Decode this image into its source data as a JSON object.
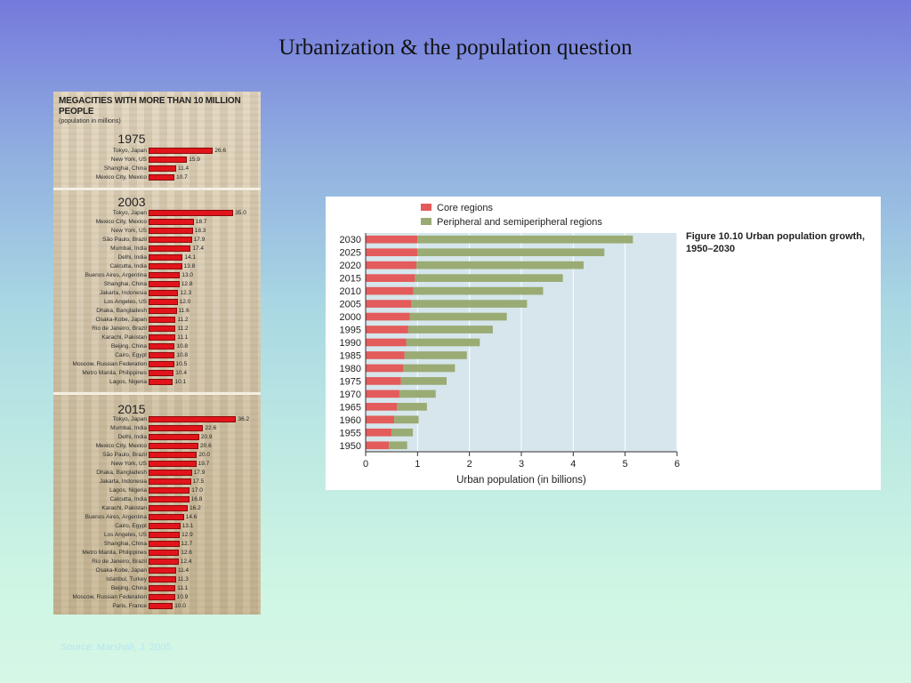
{
  "slide": {
    "title": "Urbanization & the population question",
    "source": "Source: Marshall, J. 2005"
  },
  "megacities": {
    "heading": "MEGACITIES WITH MORE THAN 10 MILLION PEOPLE",
    "subheading": "(population in millions)",
    "bar_color": "#e2141b"
  },
  "urban_figure": {
    "caption": "Figure 10.10   Urban population growth, 1950–2030",
    "colors": {
      "core": "#e35b5b",
      "peripheral": "#9aab74",
      "plot_bg": "#d6e6ec"
    }
  },
  "chart_data": [
    {
      "type": "bar",
      "orientation": "horizontal",
      "title": "1975",
      "categories": [
        "Tokyo, Japan",
        "New York, US",
        "Shanghai, China",
        "Mexico City, Mexico"
      ],
      "values": [
        26.6,
        15.9,
        11.4,
        10.7
      ],
      "value_labels": [
        "26.6",
        "15.9",
        "11.4",
        "10.7"
      ]
    },
    {
      "type": "bar",
      "orientation": "horizontal",
      "title": "2003",
      "categories": [
        "Tokyo, Japan",
        "Mexico City, Mexico",
        "New York, US",
        "São Paulo, Brazil",
        "Mumbai, India",
        "Delhi, India",
        "Calcutta, India",
        "Buenos Aires, Argentina",
        "Shanghai, China",
        "Jakarta, Indonesia",
        "Los Angeles, US",
        "Dhaka, Bangladesh",
        "Osaka-Kobe, Japan",
        "Rio de Janeiro, Brazil",
        "Karachi, Pakistan",
        "Beijing, China",
        "Cairo, Egypt",
        "Moscow, Russian Federation",
        "Metro Manila, Philippines",
        "Lagos, Nigeria"
      ],
      "values": [
        35.0,
        18.7,
        18.3,
        17.9,
        17.4,
        14.1,
        13.8,
        13.0,
        12.8,
        12.3,
        12.0,
        11.6,
        11.2,
        11.2,
        11.1,
        10.8,
        10.8,
        10.5,
        10.4,
        10.1
      ],
      "value_labels": [
        "35.0",
        "18.7",
        "18.3",
        "17.9",
        "17.4",
        "14.1",
        "13.8",
        "13.0",
        "12.8",
        "12.3",
        "12.0",
        "11.6",
        "11.2",
        "11.2",
        "11.1",
        "10.8",
        "10.8",
        "10.5",
        "10.4",
        "10.1"
      ]
    },
    {
      "type": "bar",
      "orientation": "horizontal",
      "title": "2015",
      "categories": [
        "Tokyo, Japan",
        "Mumbai, India",
        "Delhi, India",
        "Mexico City, Mexico",
        "São Paulo, Brazil",
        "New York, US",
        "Dhaka, Bangladesh",
        "Jakarta, Indonesia",
        "Lagos, Nigeria",
        "Calcutta, India",
        "Karachi, Pakistan",
        "Buenos Aires, Argentina",
        "Cairo, Egypt",
        "Los Angeles, US",
        "Shanghai, China",
        "Metro Manila, Philippines",
        "Rio de Janeiro, Brazil",
        "Osaka-Kobe, Japan",
        "Istanbul, Turkey",
        "Beijing, China",
        "Moscow, Russian Federation",
        "Paris, France"
      ],
      "values": [
        36.2,
        22.6,
        20.9,
        20.6,
        20.0,
        19.7,
        17.9,
        17.5,
        17.0,
        16.8,
        16.2,
        14.6,
        13.1,
        12.9,
        12.7,
        12.6,
        12.4,
        11.4,
        11.3,
        11.1,
        10.9,
        10.0
      ],
      "value_labels": [
        "36.2",
        "22.6",
        "20.9",
        "20.6",
        "20.0",
        "19.7",
        "17.9",
        "17.5",
        "17.0",
        "16.8",
        "16.2",
        "14.6",
        "13.1",
        "12.9",
        "12.7",
        "12.6",
        "12.4",
        "11.4",
        "11.3",
        "11.1",
        "10.9",
        "10.0"
      ]
    },
    {
      "type": "bar",
      "orientation": "horizontal",
      "stacked": true,
      "title": "",
      "xlabel": "Urban population (in billions)",
      "ylabel": "",
      "categories": [
        "2030",
        "2025",
        "2020",
        "2015",
        "2010",
        "2005",
        "2000",
        "1995",
        "1990",
        "1985",
        "1980",
        "1975",
        "1970",
        "1965",
        "1960",
        "1955",
        "1950"
      ],
      "series": [
        {
          "name": "Core regions",
          "values": [
            1.0,
            1.0,
            0.98,
            0.95,
            0.92,
            0.88,
            0.85,
            0.82,
            0.78,
            0.75,
            0.72,
            0.68,
            0.65,
            0.6,
            0.55,
            0.5,
            0.45
          ]
        },
        {
          "name": "Peripheral and semiperipheral regions",
          "values": [
            4.15,
            3.6,
            3.22,
            2.85,
            2.5,
            2.23,
            1.87,
            1.63,
            1.42,
            1.2,
            1.0,
            0.88,
            0.7,
            0.58,
            0.47,
            0.41,
            0.35
          ]
        }
      ],
      "xlim": [
        0,
        6
      ],
      "xticks": [
        "0",
        "1",
        "2",
        "3",
        "4",
        "5",
        "6"
      ],
      "grid": false,
      "legend_position": "top"
    }
  ]
}
